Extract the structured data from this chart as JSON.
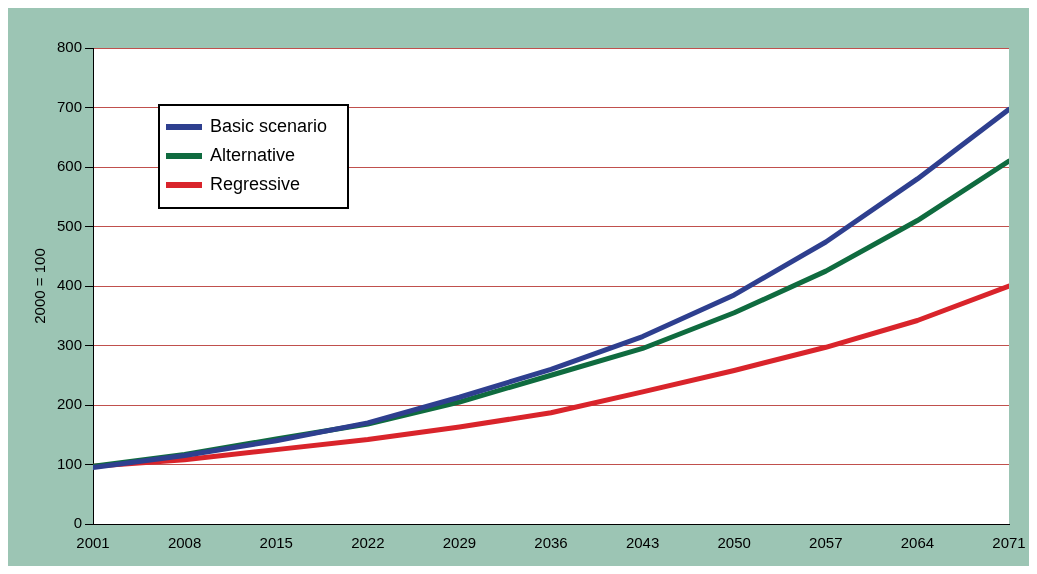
{
  "chart_data": {
    "type": "line",
    "ylabel": "2000 = 100",
    "x": [
      2001,
      2008,
      2015,
      2022,
      2029,
      2036,
      2043,
      2050,
      2057,
      2064,
      2071
    ],
    "series": [
      {
        "name": "Basic scenario",
        "color": "#2e3f8f",
        "values": [
          95,
          115,
          140,
          170,
          213,
          260,
          315,
          385,
          474,
          580,
          697
        ]
      },
      {
        "name": "Alternative",
        "color": "#0f6b3f",
        "values": [
          97,
          117,
          143,
          168,
          205,
          250,
          295,
          355,
          425,
          510,
          610
        ]
      },
      {
        "name": "Regressive",
        "color": "#d9242b",
        "values": [
          97,
          108,
          125,
          142,
          163,
          187,
          222,
          258,
          297,
          342,
          400
        ]
      }
    ],
    "xlim": [
      2001,
      2071
    ],
    "xticks": [
      2001,
      2008,
      2015,
      2022,
      2029,
      2036,
      2043,
      2050,
      2057,
      2064,
      2071
    ],
    "ylim": [
      0,
      800
    ],
    "yticks": [
      0,
      100,
      200,
      300,
      400,
      500,
      600,
      700,
      800
    ],
    "grid": "y",
    "legend": "top left",
    "marker": "none",
    "line_style": "solid"
  }
}
